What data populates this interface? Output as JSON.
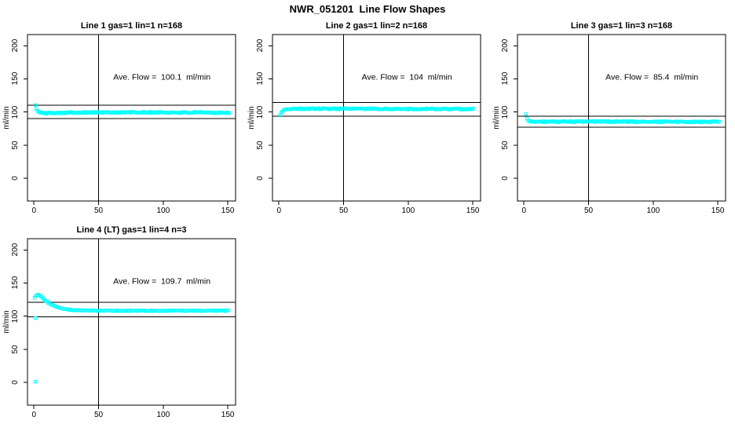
{
  "page_title": "NWR_051201  Line Flow Shapes",
  "colors": {
    "marker": "#00ffff",
    "axis": "#000000",
    "background": "#ffffff",
    "text": "#000000"
  },
  "chart_data": [
    {
      "type": "scatter",
      "title": "Line 1 gas=1 lin=1 n=168",
      "annotation": "Ave. Flow =  100.1  ml/min",
      "ave_flow_ml_min": 100.1,
      "n_points": 168,
      "ylabel": "ml/min",
      "xticks": [
        0,
        50,
        100,
        150
      ],
      "yticks": [
        0,
        50,
        100,
        150,
        200
      ],
      "xlim": [
        -5,
        156
      ],
      "ylim": [
        -34.5,
        217
      ],
      "vline_x": 50,
      "hlines": [
        110.1,
        90.1
      ],
      "marker": "open-square",
      "band": {
        "x_start": 1,
        "x_end": 151,
        "x_step": 0.898,
        "jitter": 1.0,
        "seed": 101,
        "keypoints": [
          [
            1,
            111
          ],
          [
            1.9,
            104
          ],
          [
            2.8,
            101.5
          ],
          [
            4,
            99.5
          ],
          [
            7,
            98.3
          ],
          [
            12,
            98.6
          ],
          [
            30,
            99.2
          ],
          [
            70,
            99.4
          ],
          [
            151,
            99.0
          ]
        ]
      },
      "outliers": []
    },
    {
      "type": "scatter",
      "title": "Line 2 gas=1 lin=2 n=168",
      "annotation": "Ave. Flow =  104  ml/min",
      "ave_flow_ml_min": 104,
      "n_points": 168,
      "ylabel": "ml/min",
      "xticks": [
        0,
        50,
        100,
        150
      ],
      "yticks": [
        0,
        50,
        100,
        150,
        200
      ],
      "xlim": [
        -5,
        156
      ],
      "ylim": [
        -34.5,
        217
      ],
      "vline_x": 50,
      "hlines": [
        114.4,
        93.6
      ],
      "marker": "open-square",
      "band": {
        "x_start": 0.8,
        "x_end": 151,
        "x_step": 0.9,
        "jitter": 0.9,
        "seed": 202,
        "keypoints": [
          [
            0.8,
            95.5
          ],
          [
            1.7,
            98
          ],
          [
            2.6,
            100.8
          ],
          [
            3.5,
            102.8
          ],
          [
            5,
            104.2
          ],
          [
            8,
            104.8
          ],
          [
            30,
            104.9
          ],
          [
            151,
            104.4
          ]
        ]
      },
      "outliers": []
    },
    {
      "type": "scatter",
      "title": "Line 3 gas=1 lin=3 n=168",
      "annotation": "Ave. Flow =  85.4  ml/min",
      "ave_flow_ml_min": 85.4,
      "n_points": 168,
      "ylabel": "ml/min",
      "xticks": [
        0,
        50,
        100,
        150
      ],
      "yticks": [
        0,
        50,
        100,
        150,
        200
      ],
      "xlim": [
        -5,
        156
      ],
      "ylim": [
        -34.5,
        217
      ],
      "vline_x": 50,
      "hlines": [
        93.9,
        76.9
      ],
      "marker": "open-square",
      "band": {
        "x_start": 1.5,
        "x_end": 151,
        "x_step": 0.895,
        "jitter": 0.9,
        "seed": 303,
        "keypoints": [
          [
            1.5,
            96
          ],
          [
            2.4,
            89.5
          ],
          [
            3.3,
            87
          ],
          [
            5,
            85.8
          ],
          [
            9,
            85.3
          ],
          [
            60,
            85.5
          ],
          [
            151,
            85.0
          ]
        ]
      },
      "outliers": []
    },
    {
      "type": "scatter",
      "title": "Line 4 (LT) gas=1 lin=4 n=3",
      "annotation": "Ave. Flow =  109.7  ml/min",
      "ave_flow_ml_min": 109.7,
      "n_points": 3,
      "ylabel": "ml/min",
      "xticks": [
        0,
        50,
        100,
        150
      ],
      "yticks": [
        0,
        50,
        100,
        150,
        200
      ],
      "xlim": [
        -5,
        156
      ],
      "ylim": [
        -34.5,
        217
      ],
      "vline_x": 50,
      "hlines": [
        120.7,
        98.7
      ],
      "marker": "open-square",
      "band": {
        "x_start": 0.5,
        "x_end": 151,
        "x_step": 0.95,
        "jitter": 0.65,
        "seed": 404,
        "keypoints": [
          [
            0.5,
            128
          ],
          [
            2,
            131.5
          ],
          [
            3.5,
            133
          ],
          [
            5,
            130.5
          ],
          [
            7,
            127
          ],
          [
            9,
            123.5
          ],
          [
            11,
            120.5
          ],
          [
            13,
            118
          ],
          [
            15,
            116
          ],
          [
            17,
            114.3
          ],
          [
            19,
            113
          ],
          [
            22,
            111.5
          ],
          [
            25,
            110.3
          ],
          [
            28,
            109.5
          ],
          [
            32,
            108.9
          ],
          [
            38,
            108.5
          ],
          [
            50,
            108.2
          ],
          [
            151,
            108.2
          ]
        ]
      },
      "outliers": [
        [
          1.2,
          97
        ],
        [
          1.2,
          1
        ]
      ]
    }
  ]
}
